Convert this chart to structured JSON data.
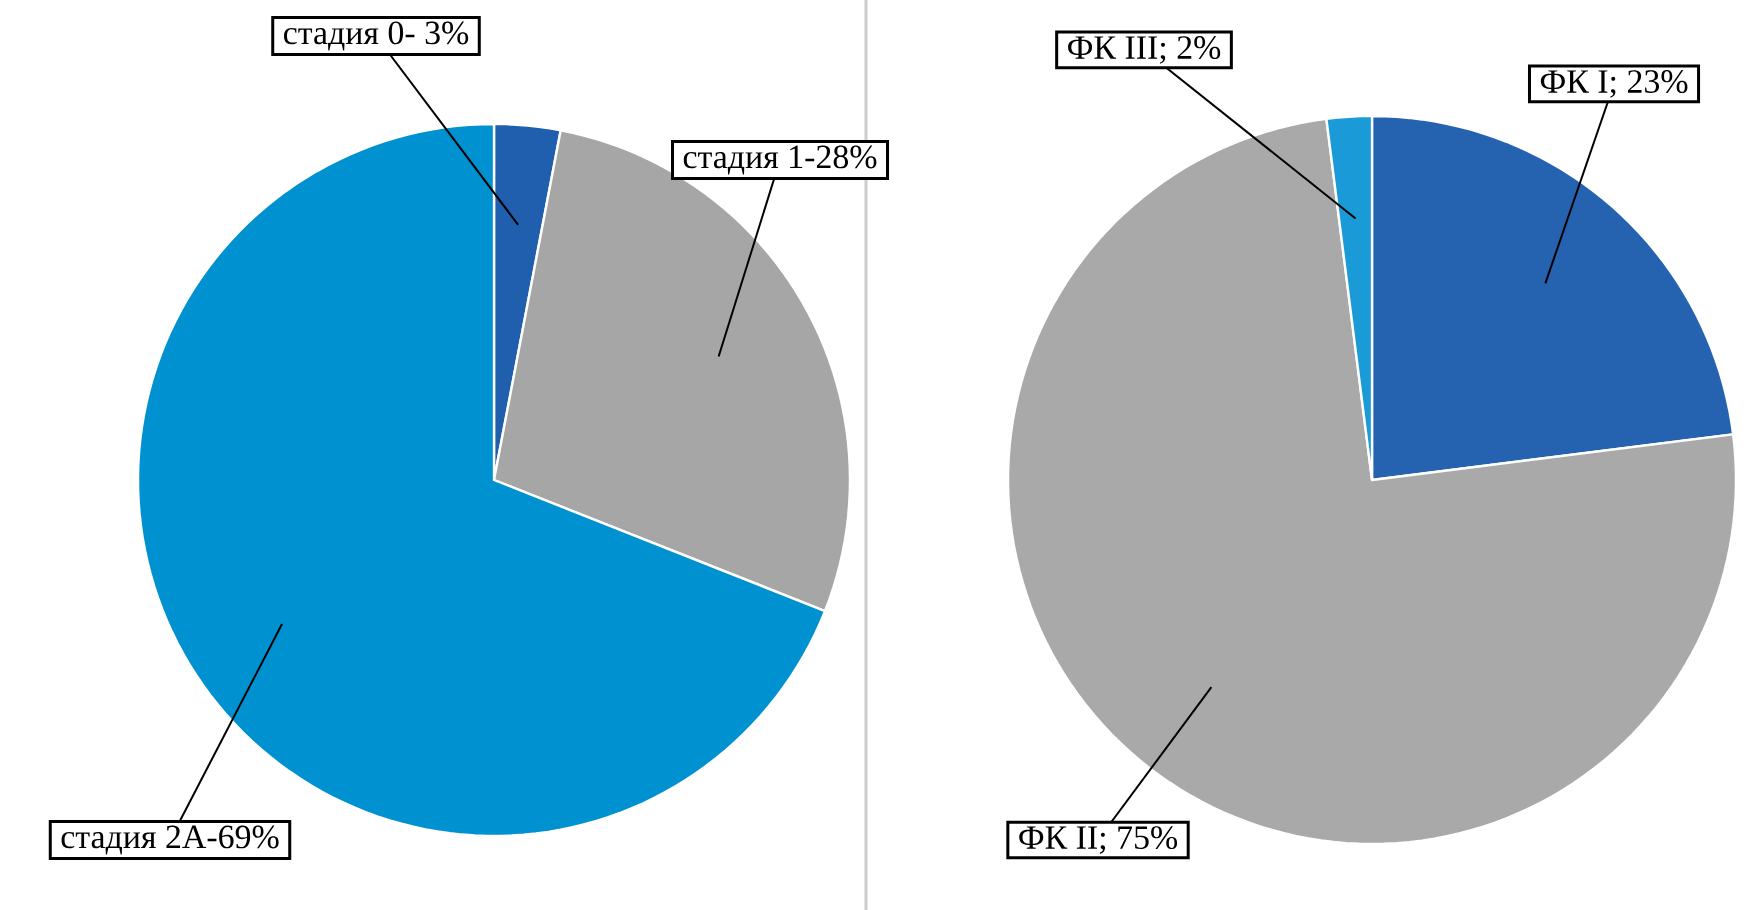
{
  "chart_data": [
    {
      "type": "pie",
      "categories": [
        "стадия 0- 3%",
        "стадия 1-28%",
        "стадия 2А-69%"
      ],
      "values": [
        3,
        28,
        69
      ],
      "colors": [
        "#1f5fae",
        "#a6a6a6",
        "#0091d0"
      ]
    },
    {
      "type": "pie",
      "categories": [
        "ФК I; 23%",
        "ФК II; 75%",
        "ФК III; 2%"
      ],
      "values": [
        23,
        75,
        2
      ],
      "colors": [
        "#2563b0",
        "#a9a9a9",
        "#1a9ad6"
      ]
    }
  ]
}
